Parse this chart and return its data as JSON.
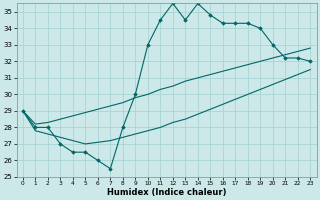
{
  "xlabel": "Humidex (Indice chaleur)",
  "background_color": "#cce8e8",
  "grid_color": "#aad4d4",
  "line_color": "#006666",
  "xlim": [
    -0.5,
    23.5
  ],
  "ylim": [
    25,
    35.5
  ],
  "yticks": [
    25,
    26,
    27,
    28,
    29,
    30,
    31,
    32,
    33,
    34,
    35
  ],
  "xticks": [
    0,
    1,
    2,
    3,
    4,
    5,
    6,
    7,
    8,
    9,
    10,
    11,
    12,
    13,
    14,
    15,
    16,
    17,
    18,
    19,
    20,
    21,
    22,
    23
  ],
  "x": [
    0,
    1,
    2,
    3,
    4,
    5,
    6,
    7,
    8,
    9,
    10,
    11,
    12,
    13,
    14,
    15,
    16,
    17,
    18,
    19,
    20,
    21,
    22,
    23
  ],
  "line_max": [
    29.0,
    28.0,
    28.0,
    27.0,
    26.5,
    26.5,
    26.0,
    25.5,
    28.0,
    30.0,
    33.0,
    34.5,
    35.5,
    34.5,
    35.5,
    34.8,
    34.3,
    34.3,
    34.3,
    34.0,
    33.0,
    32.2,
    32.2,
    32.0
  ],
  "line_mean": [
    29.0,
    28.2,
    28.3,
    28.5,
    28.7,
    28.9,
    29.1,
    29.3,
    29.5,
    29.8,
    30.0,
    30.3,
    30.5,
    30.8,
    31.0,
    31.2,
    31.4,
    31.6,
    31.8,
    32.0,
    32.2,
    32.4,
    32.6,
    32.8
  ],
  "line_min": [
    29.0,
    27.8,
    27.6,
    27.4,
    27.2,
    27.0,
    27.1,
    27.2,
    27.4,
    27.6,
    27.8,
    28.0,
    28.3,
    28.5,
    28.8,
    29.1,
    29.4,
    29.7,
    30.0,
    30.3,
    30.6,
    30.9,
    31.2,
    31.5
  ]
}
